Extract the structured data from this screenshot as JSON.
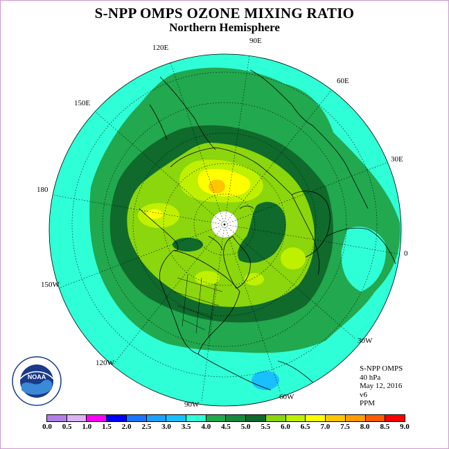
{
  "title": "S-NPP OMPS OZONE MIXING RATIO",
  "subtitle": "Northern Hemisphere",
  "longitude_labels": [
    {
      "key": "lon_90e",
      "text": "90E"
    },
    {
      "key": "lon_60e",
      "text": "60E"
    },
    {
      "key": "lon_30e",
      "text": "30E"
    },
    {
      "key": "lon_0",
      "text": "0"
    },
    {
      "key": "lon_30w",
      "text": "30W"
    },
    {
      "key": "lon_60w",
      "text": "60W"
    },
    {
      "key": "lon_90w",
      "text": "90W"
    },
    {
      "key": "lon_120w",
      "text": "120W"
    },
    {
      "key": "lon_150w",
      "text": "150W"
    },
    {
      "key": "lon_180",
      "text": "180"
    },
    {
      "key": "lon_150e",
      "text": "150E"
    },
    {
      "key": "lon_120e",
      "text": "120E"
    }
  ],
  "info": {
    "instrument": "S-NPP OMPS",
    "pressure_level": "40 hPa",
    "date": "May 12, 2016",
    "version": "v6",
    "units": "PPM"
  },
  "legend": {
    "ticks": [
      "0.0",
      "0.5",
      "1.0",
      "1.5",
      "2.0",
      "2.5",
      "3.0",
      "3.5",
      "4.0",
      "4.5",
      "5.0",
      "5.5",
      "6.0",
      "6.5",
      "7.0",
      "7.5",
      "8.0",
      "8.5",
      "9.0"
    ],
    "colors": [
      "#b27fe6",
      "#dcb4f0",
      "#ff00ff",
      "#0000ff",
      "#1c74ff",
      "#1ea0ff",
      "#19c0ff",
      "#2fffd6",
      "#22a84e",
      "#17893c",
      "#0f6a2c",
      "#8bd60c",
      "#bff000",
      "#ffff00",
      "#ffc600",
      "#ff9c00",
      "#ff5a00",
      "#ff0000",
      "#8b5a3c"
    ]
  },
  "colors": {
    "band_3_5_4_0": "#2fffd6",
    "band_4_0_4_5": "#22a84e",
    "band_4_5_5_0": "#0f6a2c",
    "band_5_0_5_5": "#8bd60c",
    "band_5_5_6_0": "#bff000",
    "band_6_0_6_5": "#ffff00",
    "band_6_5_7_0": "#ffc600",
    "band_3_0_3_5": "#19c0ff",
    "no_data": "#ffffff",
    "coastline": "#000000"
  },
  "logo": {
    "text": "NOAA",
    "ring_text": "NATIONAL OCEANIC AND ATMOSPHERIC ADMINISTRATION · U.S. DEPARTMENT OF COMMERCE"
  }
}
